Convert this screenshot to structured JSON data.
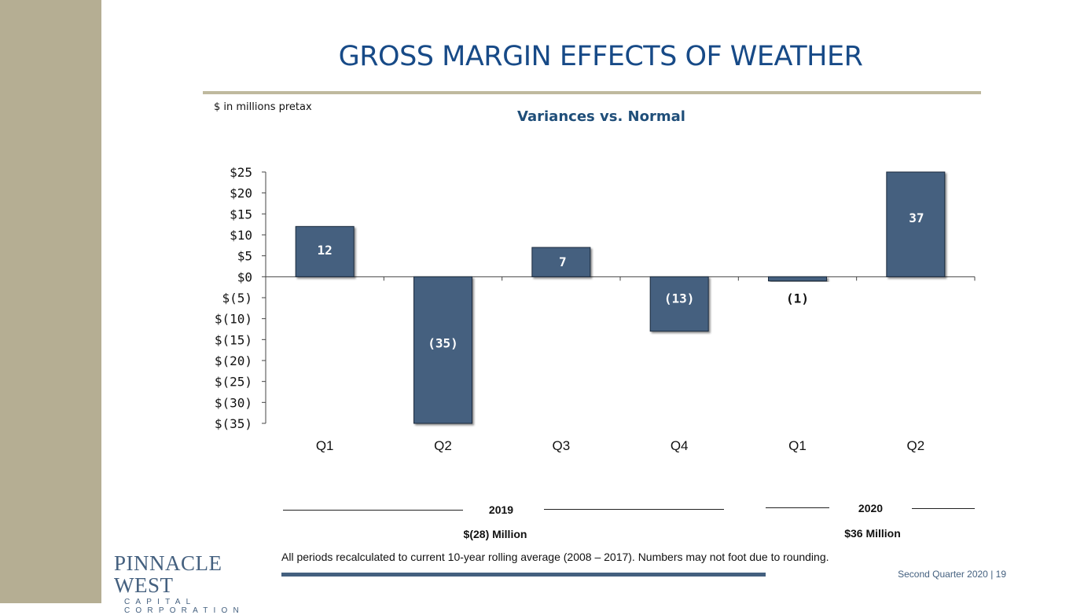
{
  "slide": {
    "title": "GROSS MARGIN EFFECTS OF WEATHER",
    "units_note": "$ in millions pretax",
    "footnote": "All periods recalculated to current 10-year rolling average (2008 – 2017). Numbers may not foot due to rounding.",
    "footer": "Second Quarter 2020  |  19"
  },
  "logo": {
    "name": "PINNACLE WEST",
    "subtitle": "CAPITAL CORPORATION"
  },
  "groups": [
    {
      "year": "2019",
      "total": "$(28) Million"
    },
    {
      "year": "2020",
      "total": "$36 Million"
    }
  ],
  "colors": {
    "bar": "#44607f",
    "title": "#174a87",
    "accent": "#b5ae93",
    "axis": "#444444"
  },
  "chart_data": {
    "type": "bar",
    "title": "Variances vs. Normal",
    "categories": [
      "Q1",
      "Q2",
      "Q3",
      "Q4",
      "Q1",
      "Q2"
    ],
    "values": [
      12,
      -35,
      7,
      -13,
      -1,
      37
    ],
    "data_labels": [
      "12",
      "(35)",
      "7",
      "(13)",
      "(1)",
      "37"
    ],
    "ylim": [
      -35,
      25
    ],
    "yticks": [
      25,
      20,
      15,
      10,
      5,
      0,
      -5,
      -10,
      -15,
      -20,
      -25,
      -30,
      -35
    ],
    "ytick_labels": [
      "$25",
      "$20",
      "$15",
      "$10",
      "$5",
      "$0",
      "$(5)",
      "$(10)",
      "$(15)",
      "$(20)",
      "$(25)",
      "$(30)",
      "$(35)"
    ],
    "xlabel": "",
    "ylabel": ""
  }
}
